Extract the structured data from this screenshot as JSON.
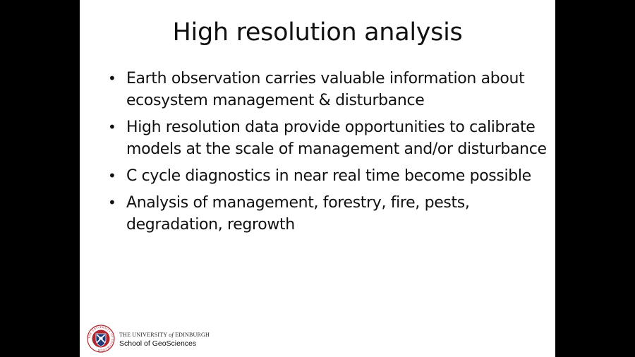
{
  "slide": {
    "title": "High resolution analysis",
    "bullet_symbol": "•",
    "bullets": [
      {
        "text": "Earth observation carries valuable information about ecosystem management & disturbance"
      },
      {
        "text": "High resolution data provide opportunities to calibrate models at the scale of management and/or disturbance"
      },
      {
        "text": "C cycle diagnostics in near real time become possible"
      },
      {
        "text": "Analysis of management, forestry, fire, pests, degradation, regrowth"
      }
    ]
  },
  "logo": {
    "university_prefix": "THE UNIVERSITY ",
    "university_of": "of",
    "university_suffix": " EDINBURGH",
    "school": "School of GeoSciences",
    "crest_ring_text": "THE UNIVERSITY OF EDINBURGH",
    "crest_icon": "university-crest-icon",
    "colors": {
      "ring": "#b0262f",
      "shield": "#1f3a7a"
    }
  },
  "colors": {
    "page_background": "#000000",
    "slide_background": "#ffffff",
    "text": "#111111"
  }
}
